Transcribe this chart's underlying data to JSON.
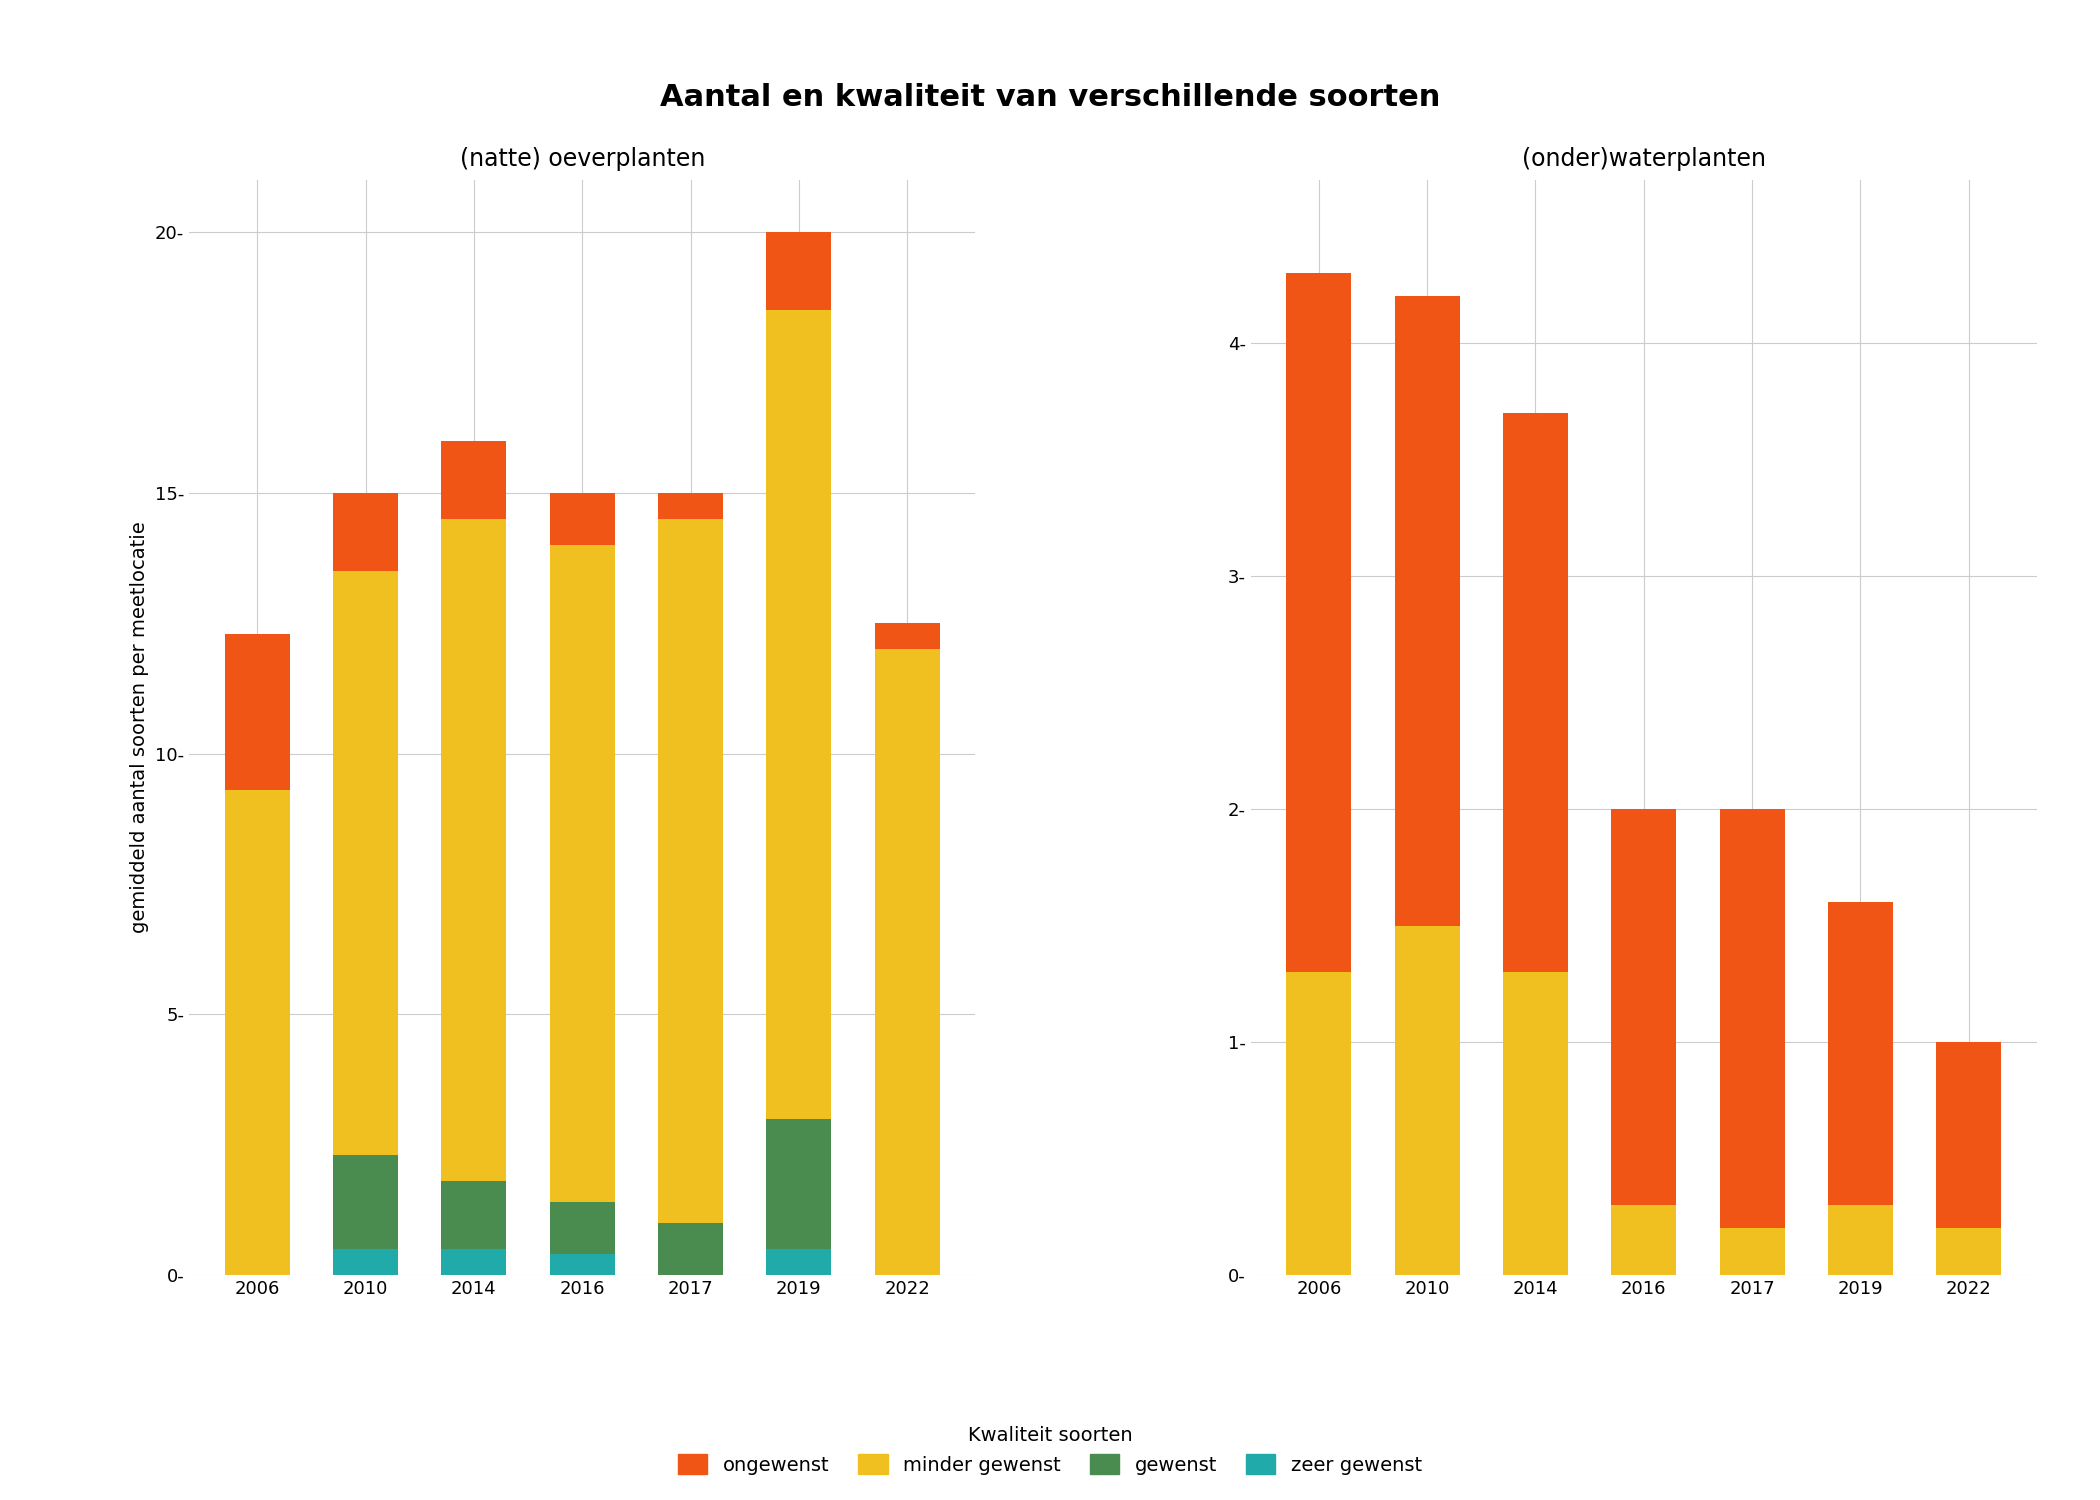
{
  "title": "Aantal en kwaliteit van verschillende soorten",
  "subtitle_left": "(natte) oeverplanten",
  "subtitle_right": "(onder)waterplanten",
  "ylabel": "gemiddeld aantal soorten per meetlocatie",
  "legend_title": "Kwaliteit soorten",
  "legend_labels": [
    "ongewenst",
    "minder gewenst",
    "gewenst",
    "zeer gewenst"
  ],
  "colors": {
    "ongewenst": "#F05515",
    "minder_gewenst": "#F0C020",
    "gewenst": "#4A8C50",
    "zeer_gewenst": "#20AAAA"
  },
  "left": {
    "years": [
      "2006",
      "2010",
      "2014",
      "2016",
      "2017",
      "2019",
      "2022"
    ],
    "zeer_gewenst": [
      0.0,
      0.5,
      0.5,
      0.4,
      0.0,
      0.5,
      0.0
    ],
    "gewenst": [
      0.0,
      1.8,
      1.3,
      1.0,
      1.0,
      2.5,
      0.0
    ],
    "minder_gewenst": [
      9.3,
      11.2,
      12.7,
      12.6,
      13.5,
      15.5,
      12.0
    ],
    "ongewenst": [
      3.0,
      1.5,
      1.5,
      1.0,
      0.5,
      1.5,
      0.5
    ],
    "ylim": [
      0,
      21
    ],
    "yticks": [
      0,
      5,
      10,
      15,
      20
    ]
  },
  "right": {
    "years": [
      "2006",
      "2010",
      "2014",
      "2016",
      "2017",
      "2019",
      "2022"
    ],
    "zeer_gewenst": [
      0.0,
      0.0,
      0.0,
      0.0,
      0.0,
      0.0,
      0.0
    ],
    "gewenst": [
      0.0,
      0.0,
      0.0,
      0.0,
      0.0,
      0.0,
      0.0
    ],
    "minder_gewenst": [
      1.3,
      1.5,
      1.3,
      0.3,
      0.2,
      0.3,
      0.2
    ],
    "ongewenst": [
      3.0,
      2.7,
      2.4,
      1.7,
      1.8,
      1.3,
      0.8
    ],
    "ylim": [
      0,
      4.7
    ],
    "yticks": [
      0,
      1,
      2,
      3,
      4
    ]
  },
  "background_color": "#FFFFFF",
  "grid_color": "#CCCCCC",
  "bar_width": 0.6,
  "title_fontsize": 22,
  "subtitle_fontsize": 17,
  "axis_label_fontsize": 14,
  "tick_fontsize": 13,
  "legend_fontsize": 14
}
